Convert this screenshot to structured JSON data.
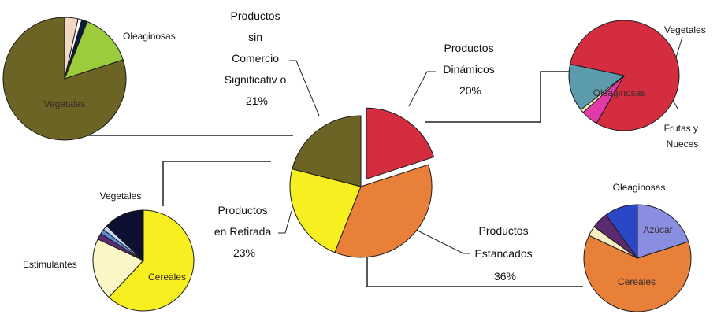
{
  "chart_data": [
    {
      "id": "main",
      "type": "pie",
      "title": "",
      "slices": [
        {
          "name": "Productos Dinámicos",
          "value": 20,
          "label_lines": [
            "Productos",
            "Dinámicos",
            "20%"
          ],
          "color": "#d42d3f",
          "exploded": true
        },
        {
          "name": "Productos Estancados",
          "value": 36,
          "label_lines": [
            "Productos",
            "Estancados",
            "36%"
          ],
          "color": "#e8803a"
        },
        {
          "name": "Productos en Retirada",
          "value": 23,
          "label_lines": [
            "Productos",
            "en Retirada",
            "23%"
          ],
          "color": "#f7ef1f"
        },
        {
          "name": "Productos sin Comercio Significativo",
          "value": 21,
          "label_lines": [
            "Productos",
            "sin",
            "Comercio",
            "Significativ o",
            "21%"
          ],
          "color": "#6b6425"
        }
      ]
    },
    {
      "id": "sin-comercio",
      "type": "pie",
      "slices": [
        {
          "name": "Vegetales",
          "value": 80,
          "label": "Vegetales",
          "color": "#6b6425"
        },
        {
          "name": "Oleaginosas",
          "value": 14,
          "label": "Oleaginosas",
          "color": "#9ccc3c"
        },
        {
          "name": "otros-1",
          "value": 1.5,
          "label": "",
          "color": "#0d1a40"
        },
        {
          "name": "otros-2",
          "value": 1,
          "label": "",
          "color": "#ffffff"
        },
        {
          "name": "otros-3",
          "value": 3.5,
          "label": "",
          "color": "#f2d8c4"
        }
      ]
    },
    {
      "id": "dinamicos",
      "type": "pie",
      "slices": [
        {
          "name": "Oleaginosas",
          "value": 80,
          "label": "Oleaginosas",
          "color": "#d42d3f"
        },
        {
          "name": "Vegetales",
          "value": 5,
          "label": "Vegetales",
          "color": "#e23aa6"
        },
        {
          "name": "otros",
          "value": 1,
          "label": "",
          "color": "#f5eec0"
        },
        {
          "name": "Frutas y Nueces",
          "value": 14,
          "label_lines": [
            "Frutas y",
            "Nueces"
          ],
          "color": "#5b9bab"
        }
      ]
    },
    {
      "id": "retirada",
      "type": "pie",
      "slices": [
        {
          "name": "Cereales",
          "value": 62,
          "label": "Cereales",
          "color": "#f7ef1f"
        },
        {
          "name": "Estimulantes",
          "value": 20,
          "label": "Estimulantes",
          "color": "#fbf6c6"
        },
        {
          "name": "otros-1",
          "value": 2,
          "label": "",
          "color": "#5c2a6e"
        },
        {
          "name": "otros-2",
          "value": 1.5,
          "label": "",
          "color": "#5a8ed8"
        },
        {
          "name": "otros-3",
          "value": 1.5,
          "label": "",
          "color": "#c9d6f0"
        },
        {
          "name": "Vegetales",
          "value": 13,
          "label": "Vegetales",
          "color": "#0d1030"
        }
      ]
    },
    {
      "id": "estancados",
      "type": "pie",
      "slices": [
        {
          "name": "Azúcar",
          "value": 20,
          "label": "Azúcar",
          "color": "#8a8ee0"
        },
        {
          "name": "Cereales",
          "value": 62,
          "label": "Cereales",
          "color": "#e8803a"
        },
        {
          "name": "otros-1",
          "value": 3,
          "label": "",
          "color": "#f5eec0"
        },
        {
          "name": "otros-2",
          "value": 5,
          "label": "",
          "color": "#5c2a6e"
        },
        {
          "name": "Oleaginosas",
          "value": 10,
          "label": "Oleaginosas",
          "color": "#2b47c8"
        }
      ]
    }
  ]
}
